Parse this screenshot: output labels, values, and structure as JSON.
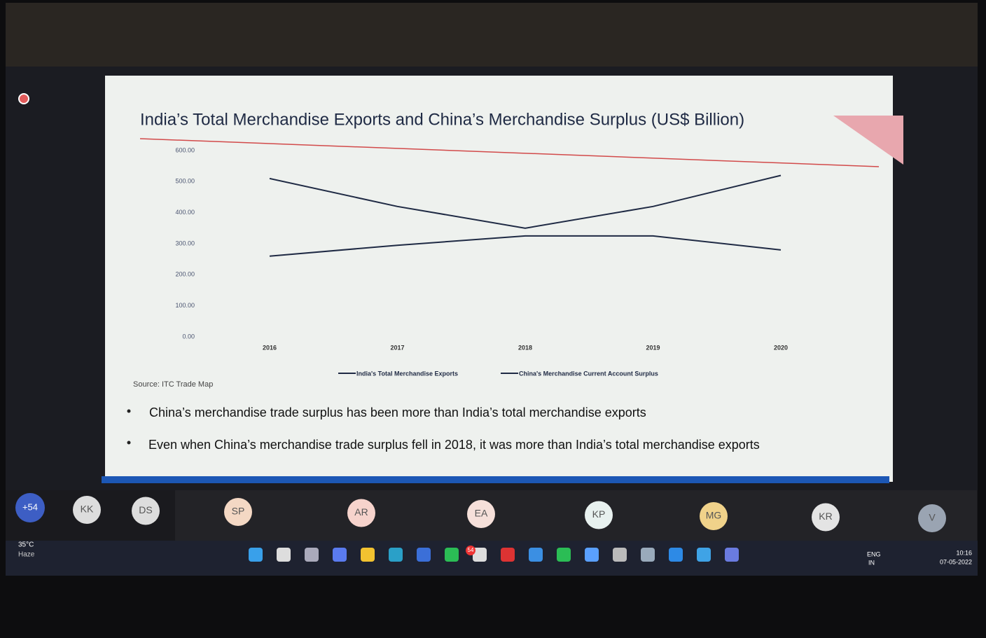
{
  "chart_data": {
    "type": "line",
    "title": "India’s Total Merchandise Exports and China’s Merchandise Surplus (US$ Billion)",
    "categories": [
      "2016",
      "2017",
      "2018",
      "2019",
      "2020"
    ],
    "series": [
      {
        "name": "India's Total Merchandise Exports",
        "color": "#1f2a44",
        "values": [
          260,
          295,
          325,
          325,
          280
        ]
      },
      {
        "name": "China's Merchandise Current Account Surplus",
        "color": "#1f2a44",
        "values": [
          510,
          420,
          350,
          420,
          520
        ]
      }
    ],
    "ylim": [
      0,
      600
    ],
    "yticks": [
      {
        "value": 0,
        "label": "0.00"
      },
      {
        "value": 100,
        "label": "100.00"
      },
      {
        "value": 200,
        "label": "200.00"
      },
      {
        "value": 300,
        "label": "300.00"
      },
      {
        "value": 400,
        "label": "400.00"
      },
      {
        "value": 500,
        "label": "500.00"
      },
      {
        "value": 600,
        "label": "600.00"
      }
    ],
    "grid": false,
    "legend": "bottom",
    "source": "Source: ITC Trade Map"
  },
  "slide": {
    "bullets": [
      "China’s merchandise trade surplus has been more than India’s total merchandise exports",
      "Even when China’s merchandise trade surplus fell in 2018, it was more than India’s total merchandise exports"
    ]
  },
  "participants": {
    "overflow": "+54",
    "initials": [
      "KK",
      "DS",
      "SP",
      "AR",
      "EA",
      "KP",
      "MG",
      "KR",
      "V"
    ]
  },
  "taskbar": {
    "temperature": "35°C",
    "weather": "Haze",
    "badge": "54",
    "language": "ENG",
    "region": "IN",
    "time": "10:16",
    "date": "07-05-2022"
  }
}
